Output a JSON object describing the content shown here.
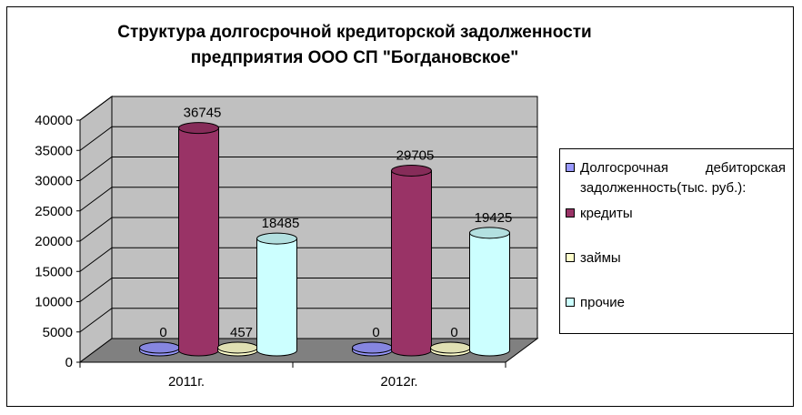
{
  "chart_data": {
    "type": "bar",
    "title_line1": "Структура долгосрочной кредиторской задолженности",
    "title_line2": "предприятия ООО СП \"Богдановское\"",
    "categories": [
      "2011г.",
      "2012г."
    ],
    "ylim": [
      0,
      40000
    ],
    "yticks": [
      "0",
      "5000",
      "10000",
      "15000",
      "20000",
      "25000",
      "30000",
      "35000",
      "40000"
    ],
    "grid": true,
    "legend_position": "right",
    "series": [
      {
        "name": "Долгосрочная дебиторская задолженность(тыс. руб.):",
        "values": [
          0,
          0
        ],
        "labels": [
          "0",
          "0"
        ],
        "color": "#9999FF"
      },
      {
        "name": "кредиты",
        "values": [
          36745,
          29705
        ],
        "labels": [
          "36745",
          "29705"
        ],
        "color": "#993366"
      },
      {
        "name": "займы",
        "values": [
          457,
          0
        ],
        "labels": [
          "457",
          "0"
        ],
        "color": "#FFFFCC"
      },
      {
        "name": "прочие",
        "values": [
          18485,
          19425
        ],
        "labels": [
          "18485",
          "19425"
        ],
        "color": "#CCFFFF"
      }
    ]
  }
}
